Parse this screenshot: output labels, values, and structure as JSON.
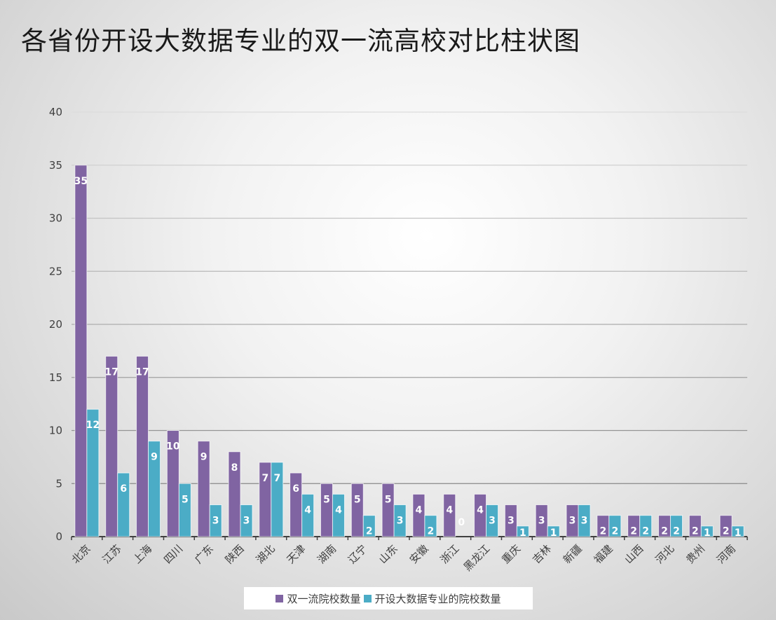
{
  "chart_data": {
    "type": "bar",
    "title": "各省份开设大数据专业的双一流高校对比柱状图",
    "xlabel": "",
    "ylabel": "",
    "ylim": [
      0,
      40
    ],
    "yticks": [
      0,
      5,
      10,
      15,
      20,
      25,
      30,
      35,
      40
    ],
    "grid": true,
    "legend_position": "bottom",
    "categories": [
      "北京",
      "江苏",
      "上海",
      "四川",
      "广东",
      "陕西",
      "湖北",
      "天津",
      "湖南",
      "辽宁",
      "山东",
      "安徽",
      "浙江",
      "黑龙江",
      "重庆",
      "吉林",
      "新疆",
      "福建",
      "山西",
      "河北",
      "贵州",
      "河南"
    ],
    "series": [
      {
        "name": "双一流院校数量",
        "color": "#8064a2",
        "values": [
          35,
          17,
          17,
          10,
          9,
          8,
          7,
          6,
          5,
          5,
          5,
          4,
          4,
          4,
          3,
          3,
          3,
          2,
          2,
          2,
          2,
          2
        ]
      },
      {
        "name": "开设大数据专业的院校数量",
        "color": "#4bacc6",
        "values": [
          12,
          6,
          9,
          5,
          3,
          3,
          7,
          4,
          4,
          2,
          3,
          2,
          0,
          3,
          1,
          1,
          3,
          2,
          2,
          2,
          1,
          1
        ]
      }
    ]
  }
}
